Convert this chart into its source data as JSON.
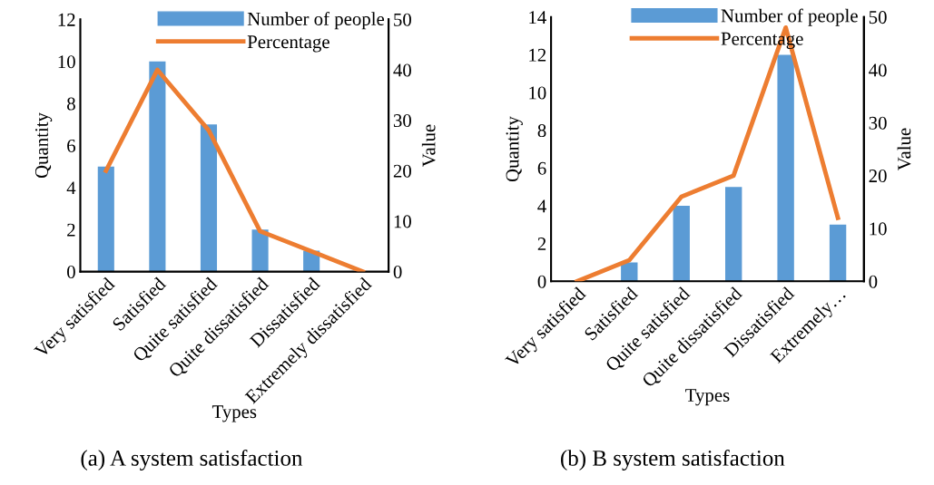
{
  "chart_data": [
    {
      "type": "bar",
      "categories": [
        "Very satisfied",
        "Satisfied",
        "Quite satisfied",
        "Quite dissatisfied",
        "Dissatisfied",
        "Extremely dissatisfied"
      ],
      "xlabel": "Types",
      "ylabel": "Quantity",
      "y2label": "Value",
      "ylim": [
        0,
        12
      ],
      "yticks": [
        0,
        2,
        4,
        6,
        8,
        10,
        12
      ],
      "y2lim": [
        0,
        50
      ],
      "y2ticks": [
        0,
        10,
        20,
        30,
        40,
        50
      ],
      "legend": "top",
      "grid": false,
      "annotations": [
        "(a) A system satisfaction"
      ],
      "series": [
        {
          "name": "Number of people",
          "color": "#5b9bd5",
          "values": [
            5,
            10,
            7,
            2,
            1,
            0
          ]
        },
        {
          "name": "Percentage",
          "type": "line",
          "axis": "y2",
          "color": "#ed7d31",
          "values": [
            20,
            40,
            28,
            8,
            4,
            0
          ]
        }
      ]
    },
    {
      "type": "bar",
      "categories": [
        "Very satisfied",
        "Satisfied",
        "Quite satisfied",
        "Quite dissatisfied",
        "Dissatisfied",
        "Extremely…"
      ],
      "xlabel": "Types",
      "ylabel": "Quantity",
      "y2label": "Value",
      "ylim": [
        0,
        14
      ],
      "yticks": [
        0,
        2,
        4,
        6,
        8,
        10,
        12,
        14
      ],
      "y2lim": [
        0,
        50
      ],
      "y2ticks": [
        0,
        10,
        20,
        30,
        40,
        50
      ],
      "legend": "top",
      "grid": false,
      "annotations": [
        "(b) B system satisfaction"
      ],
      "series": [
        {
          "name": "Number of people",
          "color": "#5b9bd5",
          "values": [
            0,
            1,
            4,
            5,
            12,
            3
          ]
        },
        {
          "name": "Percentage",
          "type": "line",
          "axis": "y2",
          "color": "#ed7d31",
          "values": [
            0,
            4,
            16,
            20,
            48,
            12
          ]
        }
      ]
    }
  ]
}
